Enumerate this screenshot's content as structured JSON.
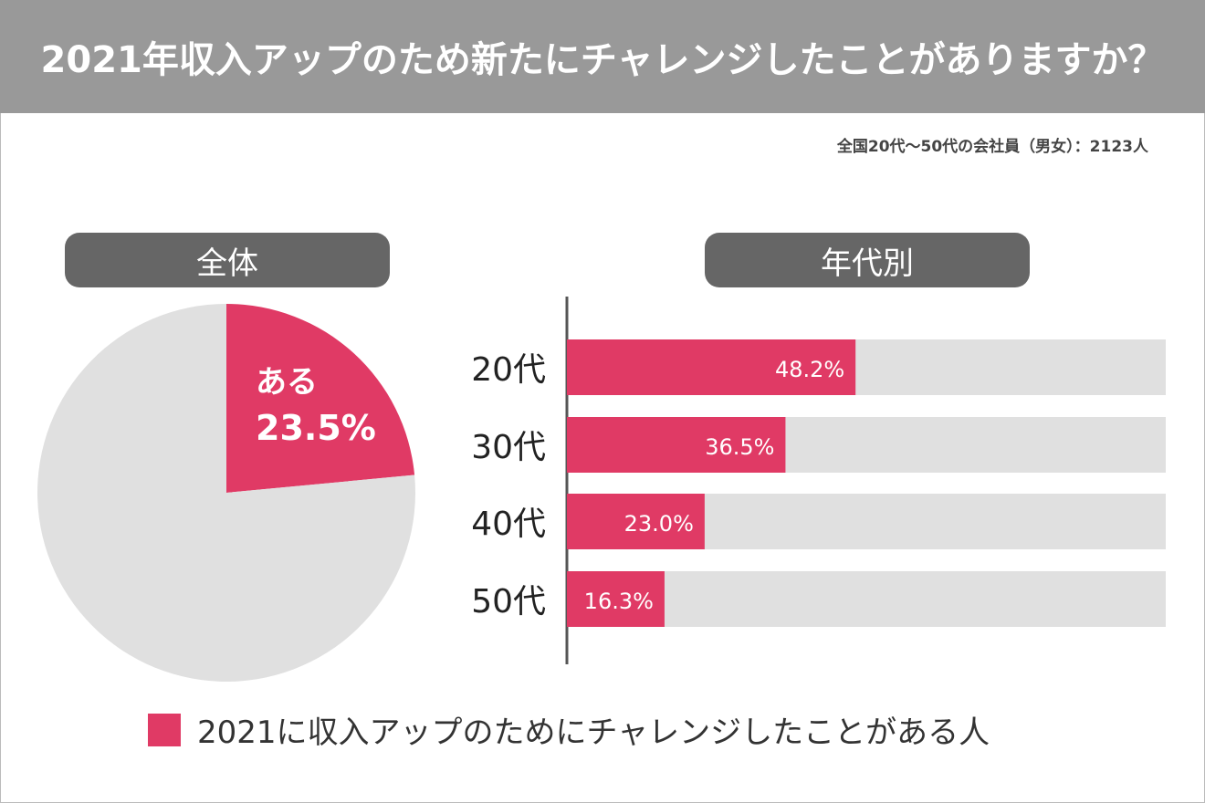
{
  "title": "2021年収入アップのため新たにチャレンジしたことがありますか？",
  "subtitle": "全国20代〜50代の会社員（男女）：2123人",
  "colors": {
    "accent": "#e03a65",
    "rest": "#e0e0e0",
    "header": "#999999",
    "pill": "#666666"
  },
  "chart_data": [
    {
      "type": "pie",
      "title": "全体",
      "slices": [
        {
          "label": "ある",
          "value": 23.5,
          "value_label": "23.5%",
          "color": "#e03a65"
        },
        {
          "value": 76.5,
          "color": "#e0e0e0"
        }
      ]
    },
    {
      "type": "bar",
      "orientation": "horizontal",
      "title": "年代別",
      "categories": [
        "20代",
        "30代",
        "40代",
        "50代"
      ],
      "values": [
        48.2,
        36.5,
        23.0,
        16.3
      ],
      "value_labels": [
        "48.2%",
        "36.5%",
        "23.0%",
        "16.3%"
      ],
      "xlim": [
        0,
        100
      ]
    }
  ],
  "legend": {
    "label": "2021に収入アップのためにチャレンジしたことがある人"
  }
}
